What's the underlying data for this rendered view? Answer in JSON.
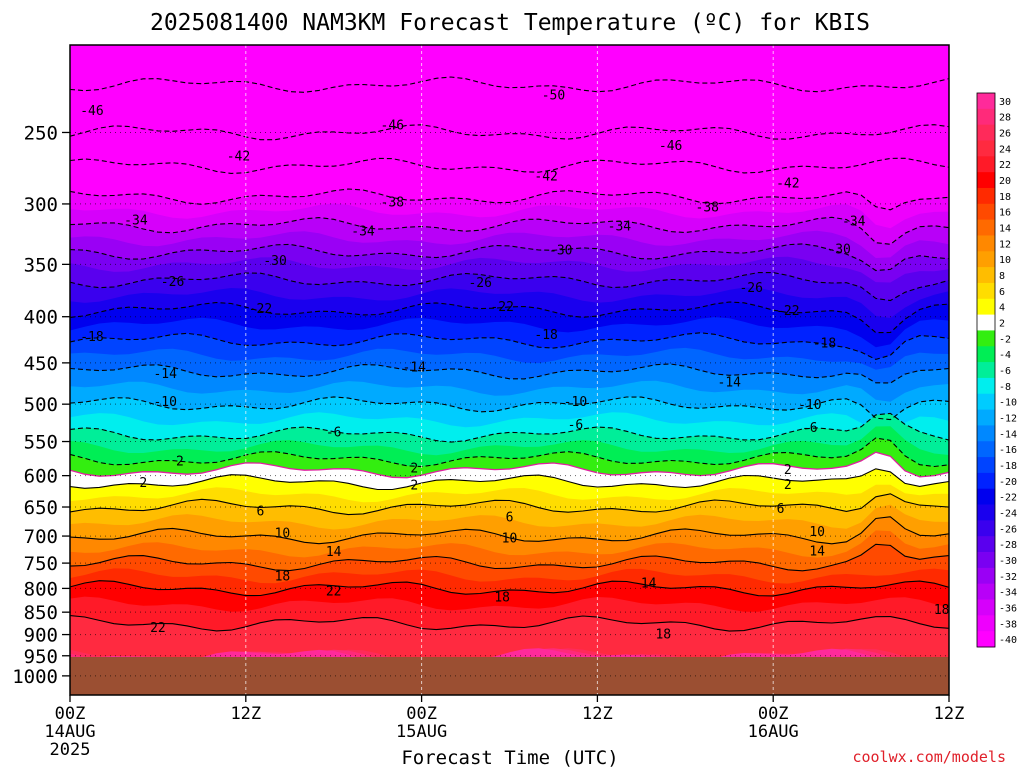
{
  "chart_data": {
    "type": "heatmap",
    "title": "2025081400 NAM3KM Forecast Temperature (ºC) for KBIS",
    "xlabel": "Forecast Time (UTC)",
    "ylabel": "",
    "credit": "coolwx.com/models",
    "y_scale": "log-pressure",
    "ylim": [
      1050,
      200
    ],
    "xlim_hours": [
      0,
      60
    ],
    "ground_level_hPa": 953,
    "y_ticks": [
      250,
      300,
      350,
      400,
      450,
      500,
      550,
      600,
      650,
      700,
      750,
      800,
      850,
      900,
      950,
      1000
    ],
    "x_ticks": [
      {
        "hour": 0,
        "label": "00Z",
        "date": "14AUG",
        "year": "2025"
      },
      {
        "hour": 12,
        "label": "12Z",
        "date": "",
        "year": ""
      },
      {
        "hour": 24,
        "label": "00Z",
        "date": "15AUG",
        "year": ""
      },
      {
        "hour": 36,
        "label": "12Z",
        "date": "",
        "year": ""
      },
      {
        "hour": 48,
        "label": "00Z",
        "date": "16AUG",
        "year": ""
      },
      {
        "hour": 60,
        "label": "12Z",
        "date": "",
        "year": ""
      }
    ],
    "colorbar": {
      "labels": [
        "30",
        "28",
        "26",
        "24",
        "22",
        "20",
        "18",
        "16",
        "14",
        "12",
        "10",
        "8",
        "6",
        "4",
        "2",
        "-2",
        "-4",
        "-6",
        "-8",
        "-10",
        "-12",
        "-14",
        "-16",
        "-18",
        "-20",
        "-22",
        "-24",
        "-26",
        "-28",
        "-30",
        "-32",
        "-34",
        "-36",
        "-38",
        "-40"
      ],
      "colors": [
        "#ff2a9a",
        "#ff2a7a",
        "#ff2a5a",
        "#ff2a40",
        "#ff1a28",
        "#ff0000",
        "#ff2a00",
        "#ff4a00",
        "#ff6a00",
        "#ff8800",
        "#ff9f00",
        "#ffbd00",
        "#ffdd00",
        "#ffff00",
        "#ffffff",
        "#33ee10",
        "#00ee55",
        "#00ee99",
        "#00eeee",
        "#00ccff",
        "#00aaff",
        "#0088ff",
        "#0066ff",
        "#0044ff",
        "#0022ff",
        "#0000ee",
        "#1a00ee",
        "#3a00ee",
        "#5a00ee",
        "#7a00f2",
        "#9a00f5",
        "#b800f8",
        "#d600fb",
        "#ee00fd",
        "#ff00ff"
      ]
    },
    "contour_levels": [
      -50,
      -46,
      -42,
      -38,
      -34,
      -30,
      -26,
      -22,
      -18,
      -14,
      -10,
      -6,
      -2,
      2,
      6,
      10,
      14,
      18,
      22
    ],
    "temperature_profile": [
      {
        "p": 200,
        "t": -53
      },
      {
        "p": 250,
        "t": -46
      },
      {
        "p": 300,
        "t": -37
      },
      {
        "p": 350,
        "t": -28
      },
      {
        "p": 400,
        "t": -21
      },
      {
        "p": 450,
        "t": -15
      },
      {
        "p": 500,
        "t": -10
      },
      {
        "p": 550,
        "t": -5
      },
      {
        "p": 600,
        "t": 1
      },
      {
        "p": 650,
        "t": 6
      },
      {
        "p": 700,
        "t": 10
      },
      {
        "p": 750,
        "t": 14
      },
      {
        "p": 800,
        "t": 18
      },
      {
        "p": 850,
        "t": 21
      },
      {
        "p": 900,
        "t": 23
      },
      {
        "p": 950,
        "t": 24
      }
    ],
    "contour_labels": [
      {
        "text": "-50",
        "hour": 33,
        "p": 227
      },
      {
        "text": "-46",
        "hour": 1.5,
        "p": 236
      },
      {
        "text": "-46",
        "hour": 22,
        "p": 245
      },
      {
        "text": "-46",
        "hour": 41,
        "p": 258
      },
      {
        "text": "-42",
        "hour": 11.5,
        "p": 265
      },
      {
        "text": "-42",
        "hour": 32.5,
        "p": 279
      },
      {
        "text": "-42",
        "hour": 49,
        "p": 284
      },
      {
        "text": "-38",
        "hour": 22,
        "p": 298
      },
      {
        "text": "-38",
        "hour": 43.5,
        "p": 302
      },
      {
        "text": "-34",
        "hour": 4.5,
        "p": 312
      },
      {
        "text": "-34",
        "hour": 20,
        "p": 321
      },
      {
        "text": "-34",
        "hour": 37.5,
        "p": 317
      },
      {
        "text": "-34",
        "hour": 53.5,
        "p": 313
      },
      {
        "text": "-30",
        "hour": 14,
        "p": 346
      },
      {
        "text": "-30",
        "hour": 33.5,
        "p": 337
      },
      {
        "text": "-30",
        "hour": 52.5,
        "p": 336
      },
      {
        "text": "-26",
        "hour": 7,
        "p": 365
      },
      {
        "text": "-26",
        "hour": 28,
        "p": 366
      },
      {
        "text": "-26",
        "hour": 46.5,
        "p": 371
      },
      {
        "text": "-22",
        "hour": 13,
        "p": 391
      },
      {
        "text": "-22",
        "hour": 29.5,
        "p": 389
      },
      {
        "text": "-22",
        "hour": 49,
        "p": 393
      },
      {
        "text": "-18",
        "hour": 1.5,
        "p": 420
      },
      {
        "text": "-18",
        "hour": 32.5,
        "p": 418
      },
      {
        "text": "-18",
        "hour": 51.5,
        "p": 427
      },
      {
        "text": "-14",
        "hour": 6.5,
        "p": 462
      },
      {
        "text": "-14",
        "hour": 23.5,
        "p": 454
      },
      {
        "text": "-14",
        "hour": 45,
        "p": 472
      },
      {
        "text": "-10",
        "hour": 6.5,
        "p": 496
      },
      {
        "text": "-10",
        "hour": 34.5,
        "p": 496
      },
      {
        "text": "-10",
        "hour": 50.5,
        "p": 500
      },
      {
        "text": "-6",
        "hour": 18,
        "p": 536
      },
      {
        "text": "-6",
        "hour": 34.5,
        "p": 526
      },
      {
        "text": "-6",
        "hour": 50.5,
        "p": 530
      },
      {
        "text": "2",
        "hour": 7.5,
        "p": 577
      },
      {
        "text": "2",
        "hour": 23.5,
        "p": 588
      },
      {
        "text": "2",
        "hour": 49,
        "p": 590
      },
      {
        "text": "2",
        "hour": 5,
        "p": 610
      },
      {
        "text": "2",
        "hour": 23.5,
        "p": 614
      },
      {
        "text": "2",
        "hour": 49,
        "p": 613
      },
      {
        "text": "6",
        "hour": 13,
        "p": 656
      },
      {
        "text": "6",
        "hour": 30,
        "p": 666
      },
      {
        "text": "6",
        "hour": 48.5,
        "p": 652
      },
      {
        "text": "10",
        "hour": 14.5,
        "p": 694
      },
      {
        "text": "10",
        "hour": 30,
        "p": 703
      },
      {
        "text": "10",
        "hour": 51,
        "p": 691
      },
      {
        "text": "14",
        "hour": 18,
        "p": 727
      },
      {
        "text": "14",
        "hour": 39.5,
        "p": 788
      },
      {
        "text": "14",
        "hour": 51,
        "p": 726
      },
      {
        "text": "18",
        "hour": 14.5,
        "p": 774
      },
      {
        "text": "18",
        "hour": 29.5,
        "p": 817
      },
      {
        "text": "18",
        "hour": 40.5,
        "p": 897
      },
      {
        "text": "18",
        "hour": 59.5,
        "p": 843
      },
      {
        "text": "22",
        "hour": 18,
        "p": 804
      },
      {
        "text": "22",
        "hour": 6,
        "p": 883
      }
    ]
  }
}
